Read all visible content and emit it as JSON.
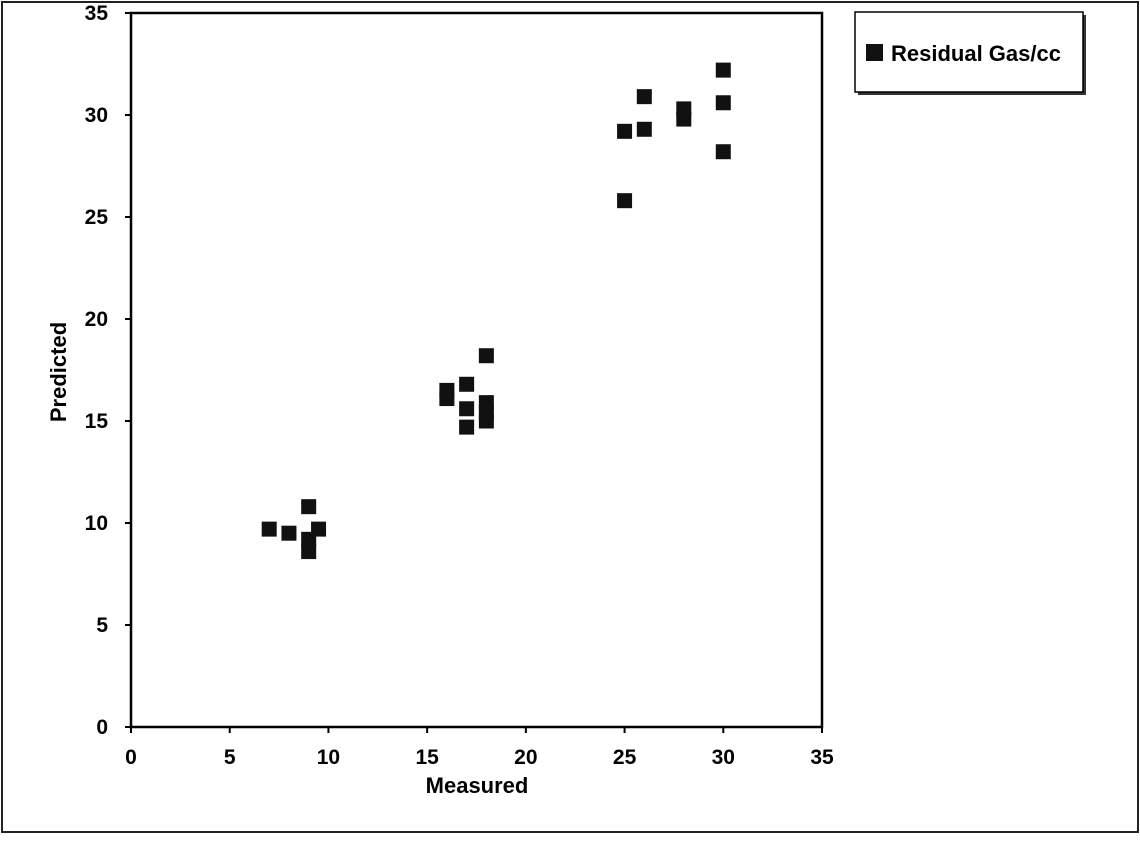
{
  "chart_data": {
    "type": "scatter",
    "title": "",
    "xlabel": "Measured",
    "ylabel": "Predicted",
    "xlim": [
      0,
      35
    ],
    "ylim": [
      0,
      35
    ],
    "xticks": [
      "0",
      "5",
      "10",
      "15",
      "20",
      "25",
      "30",
      "35"
    ],
    "yticks": [
      "0",
      "5",
      "10",
      "15",
      "20",
      "25",
      "30",
      "35"
    ],
    "grid": false,
    "legend_position": "top-right outside",
    "series": [
      {
        "name": "Residual Gas/cc",
        "marker": "square",
        "color": "#111111",
        "points": [
          {
            "x": 7,
            "y": 9.7
          },
          {
            "x": 8,
            "y": 9.5
          },
          {
            "x": 9,
            "y": 10.8
          },
          {
            "x": 9,
            "y": 9.2
          },
          {
            "x": 9,
            "y": 8.6
          },
          {
            "x": 9.5,
            "y": 9.7
          },
          {
            "x": 16,
            "y": 16.5
          },
          {
            "x": 16,
            "y": 16.1
          },
          {
            "x": 17,
            "y": 16.8
          },
          {
            "x": 17,
            "y": 15.6
          },
          {
            "x": 17,
            "y": 14.7
          },
          {
            "x": 18,
            "y": 18.2
          },
          {
            "x": 18,
            "y": 15.9
          },
          {
            "x": 18,
            "y": 15.4
          },
          {
            "x": 18,
            "y": 15
          },
          {
            "x": 25,
            "y": 29.2
          },
          {
            "x": 25,
            "y": 25.8
          },
          {
            "x": 26,
            "y": 30.9
          },
          {
            "x": 26,
            "y": 29.3
          },
          {
            "x": 28,
            "y": 30.3
          },
          {
            "x": 28,
            "y": 29.8
          },
          {
            "x": 30,
            "y": 32.2
          },
          {
            "x": 30,
            "y": 30.6
          },
          {
            "x": 30,
            "y": 28.2
          }
        ]
      }
    ]
  },
  "colors": {
    "background": "#ffffff",
    "axis": "#000000",
    "marker": "#111111"
  }
}
